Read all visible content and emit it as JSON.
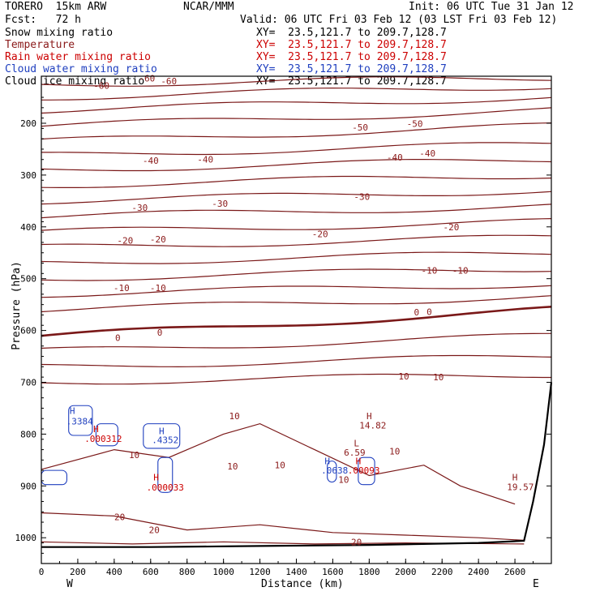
{
  "header": {
    "model": "TORERO  15km ARW",
    "center": "NCAR/MMM",
    "init": "Init: 06 UTC Tue 31 Jan 12",
    "fcst": "Fcst:   72 h",
    "valid": "Valid: 06 UTC Fri 03 Feb 12 (03 LST Fri 03 Feb 12)"
  },
  "legend": [
    {
      "label": "Snow mixing ratio",
      "color": "#000000",
      "xy": "XY=  23.5,121.7 to 209.7,128.7"
    },
    {
      "label": "Temperature",
      "color": "#8b1a1a",
      "xy": "XY=  23.5,121.7 to 209.7,128.7"
    },
    {
      "label": "Rain water mixing ratio",
      "color": "#cc0000",
      "xy": "XY=  23.5,121.7 to 209.7,128.7"
    },
    {
      "label": "Cloud water mixing ratio",
      "color": "#1f3fbf",
      "xy": "XY=  23.5,121.7 to 209.7,128.7"
    },
    {
      "label": "Cloud ice mixing ratio",
      "color": "#000000",
      "xy": "XY=  23.5,121.7 to 209.7,128.7"
    }
  ],
  "axes": {
    "ylabel": "Pressure (hPa)",
    "xlabel": "Distance (km)",
    "xstart": "W",
    "xend": "E",
    "yticks": [
      "200",
      "300",
      "400",
      "500",
      "600",
      "700",
      "800",
      "900",
      "1000"
    ],
    "xticks": [
      "0",
      "200",
      "400",
      "600",
      "800",
      "1000",
      "1200",
      "1400",
      "1600",
      "1800",
      "2000",
      "2200",
      "2400",
      "2600"
    ]
  },
  "contour_labels": [
    {
      "text": "-60",
      "p": 127,
      "km": 330,
      "color": "#8b1a1a"
    },
    {
      "text": "-60",
      "p": 113,
      "km": 580,
      "color": "#8b1a1a"
    },
    {
      "text": "-60",
      "p": 119,
      "km": 700,
      "color": "#8b1a1a"
    },
    {
      "text": "-50",
      "p": 208,
      "km": 1750,
      "color": "#8b1a1a"
    },
    {
      "text": "-50",
      "p": 201,
      "km": 2050,
      "color": "#8b1a1a"
    },
    {
      "text": "-40",
      "p": 272,
      "km": 600,
      "color": "#8b1a1a"
    },
    {
      "text": "-40",
      "p": 270,
      "km": 900,
      "color": "#8b1a1a"
    },
    {
      "text": "-40",
      "p": 266,
      "km": 1940,
      "color": "#8b1a1a"
    },
    {
      "text": "-40",
      "p": 258,
      "km": 2120,
      "color": "#8b1a1a"
    },
    {
      "text": "-30",
      "p": 363,
      "km": 540,
      "color": "#8b1a1a"
    },
    {
      "text": "-30",
      "p": 355,
      "km": 980,
      "color": "#8b1a1a"
    },
    {
      "text": "-30",
      "p": 342,
      "km": 1760,
      "color": "#8b1a1a"
    },
    {
      "text": "-20",
      "p": 426,
      "km": 460,
      "color": "#8b1a1a"
    },
    {
      "text": "-20",
      "p": 424,
      "km": 640,
      "color": "#8b1a1a"
    },
    {
      "text": "-20",
      "p": 414,
      "km": 1530,
      "color": "#8b1a1a"
    },
    {
      "text": "-20",
      "p": 400,
      "km": 2250,
      "color": "#8b1a1a"
    },
    {
      "text": "-10",
      "p": 518,
      "km": 440,
      "color": "#8b1a1a"
    },
    {
      "text": "-10",
      "p": 518,
      "km": 640,
      "color": "#8b1a1a"
    },
    {
      "text": "-10",
      "p": 484,
      "km": 2130,
      "color": "#8b1a1a"
    },
    {
      "text": "-10",
      "p": 484,
      "km": 2300,
      "color": "#8b1a1a"
    },
    {
      "text": "0",
      "p": 614,
      "km": 420,
      "color": "#8b1a1a"
    },
    {
      "text": "0",
      "p": 604,
      "km": 650,
      "color": "#8b1a1a"
    },
    {
      "text": "0",
      "p": 565,
      "km": 2060,
      "color": "#8b1a1a"
    },
    {
      "text": "0",
      "p": 564,
      "km": 2130,
      "color": "#8b1a1a"
    },
    {
      "text": "10",
      "p": 688,
      "km": 1990,
      "color": "#8b1a1a"
    },
    {
      "text": "10",
      "p": 690,
      "km": 2180,
      "color": "#8b1a1a"
    },
    {
      "text": "10",
      "p": 765,
      "km": 1060,
      "color": "#8b1a1a"
    },
    {
      "text": "10",
      "p": 840,
      "km": 510,
      "color": "#8b1a1a"
    },
    {
      "text": "10",
      "p": 862,
      "km": 1050,
      "color": "#8b1a1a"
    },
    {
      "text": "10",
      "p": 860,
      "km": 1310,
      "color": "#8b1a1a"
    },
    {
      "text": "10",
      "p": 833,
      "km": 1940,
      "color": "#8b1a1a"
    },
    {
      "text": "10",
      "p": 888,
      "km": 1660,
      "color": "#8b1a1a"
    },
    {
      "text": "20",
      "p": 960,
      "km": 430,
      "color": "#8b1a1a"
    },
    {
      "text": "20",
      "p": 985,
      "km": 620,
      "color": "#8b1a1a"
    },
    {
      "text": "20",
      "p": 1008,
      "km": 1730,
      "color": "#8b1a1a"
    }
  ],
  "markers": [
    {
      "text": "H",
      "p": 755,
      "km": 170,
      "color": "#1f3fbf"
    },
    {
      "text": ".3384",
      "p": 775,
      "km": 210,
      "color": "#1f3fbf"
    },
    {
      "text": "H",
      "p": 790,
      "km": 300,
      "color": "#cc0000"
    },
    {
      "text": ".000312",
      "p": 809,
      "km": 340,
      "color": "#cc0000"
    },
    {
      "text": "H",
      "p": 794,
      "km": 660,
      "color": "#1f3fbf"
    },
    {
      "text": ".4352",
      "p": 811,
      "km": 680,
      "color": "#1f3fbf"
    },
    {
      "text": "H",
      "p": 883,
      "km": 630,
      "color": "#cc0000"
    },
    {
      "text": ".000033",
      "p": 903,
      "km": 680,
      "color": "#cc0000"
    },
    {
      "text": "H",
      "p": 765,
      "km": 1800,
      "color": "#8b1a1a"
    },
    {
      "text": "14.82",
      "p": 783,
      "km": 1820,
      "color": "#8b1a1a"
    },
    {
      "text": "L",
      "p": 817,
      "km": 1730,
      "color": "#8b1a1a"
    },
    {
      "text": "6.59",
      "p": 835,
      "km": 1720,
      "color": "#8b1a1a"
    },
    {
      "text": "H",
      "p": 852,
      "km": 1570,
      "color": "#1f3fbf"
    },
    {
      "text": ".0638",
      "p": 870,
      "km": 1610,
      "color": "#1f3fbf"
    },
    {
      "text": "H",
      "p": 852,
      "km": 1740,
      "color": "#cc0000"
    },
    {
      "text": ".00093",
      "p": 870,
      "km": 1770,
      "color": "#cc0000"
    },
    {
      "text": "H",
      "p": 883,
      "km": 2600,
      "color": "#8b1a1a"
    },
    {
      "text": "19.57",
      "p": 902,
      "km": 2630,
      "color": "#8b1a1a"
    }
  ]
}
